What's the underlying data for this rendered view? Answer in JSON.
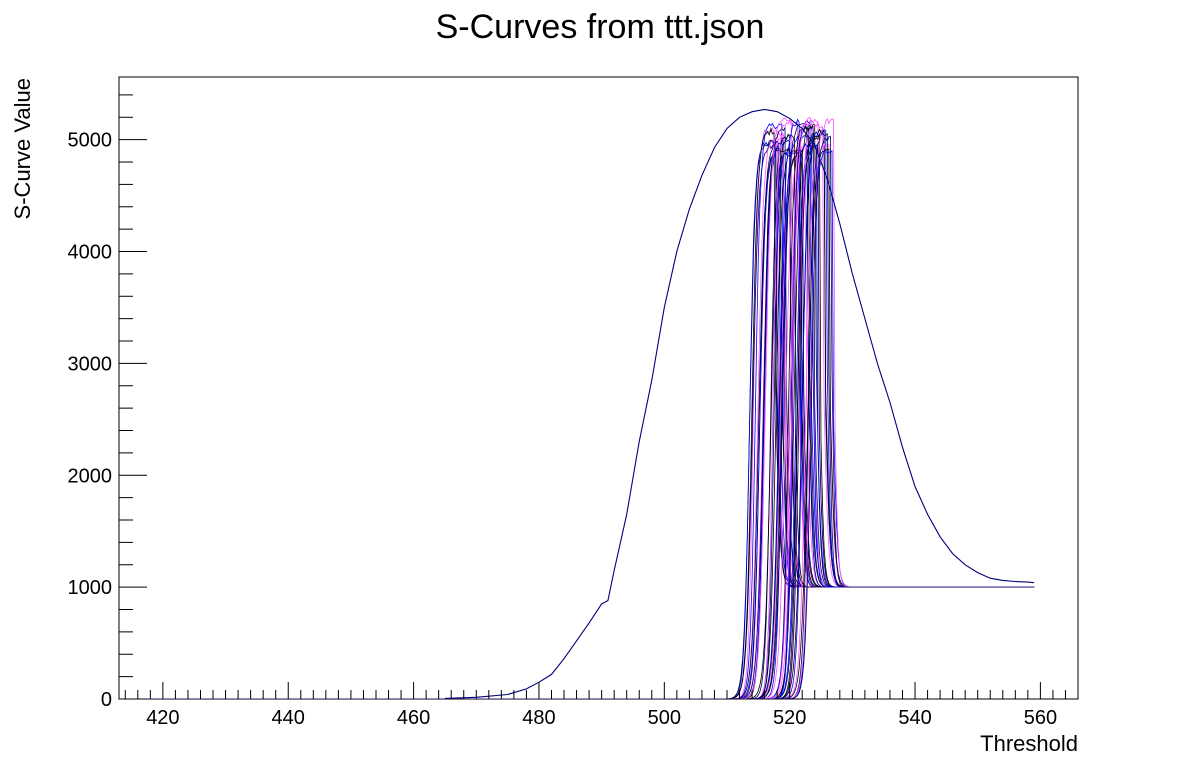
{
  "chart_data": {
    "type": "line",
    "title": "S-Curves from ttt.json",
    "xlabel": "Threshold",
    "ylabel": "S-Curve Value",
    "xlim": [
      413,
      566
    ],
    "ylim": [
      0,
      5560
    ],
    "x_ticks": [
      420,
      440,
      460,
      480,
      500,
      520,
      540,
      560
    ],
    "y_ticks": [
      0,
      1000,
      2000,
      3000,
      4000,
      5000
    ],
    "legend": "none",
    "grid": false,
    "colors": {
      "envelope": "#00007a",
      "dark": "#000000",
      "blue": "#0000ff",
      "pink": "#ff55ff",
      "navy": "#000066"
    },
    "envelope": {
      "color": "#00007a",
      "x": [
        465,
        470,
        475,
        478,
        480,
        482,
        484,
        486,
        488,
        490,
        491,
        492,
        494,
        496,
        498,
        500,
        502,
        504,
        506,
        508,
        510,
        512,
        514,
        516,
        518,
        520,
        522,
        524,
        526,
        528,
        530,
        532,
        534,
        536,
        538,
        540,
        542,
        544,
        546,
        548,
        550,
        552,
        554,
        556,
        558,
        559
      ],
      "y": [
        5,
        15,
        40,
        90,
        150,
        220,
        360,
        520,
        680,
        850,
        880,
        1150,
        1650,
        2300,
        2850,
        3500,
        4000,
        4380,
        4680,
        4930,
        5100,
        5200,
        5250,
        5270,
        5250,
        5190,
        5100,
        4950,
        4650,
        4250,
        3800,
        3400,
        3000,
        2650,
        2250,
        1900,
        1650,
        1450,
        1300,
        1200,
        1130,
        1080,
        1060,
        1050,
        1045,
        1040
      ]
    },
    "pixel_curves": {
      "count": 48,
      "x_start": 416,
      "x_end": 559,
      "baseline_low": 0,
      "peak_range": [
        4880,
        5190
      ],
      "plateau_high": 1000,
      "rise_center_range": [
        513.5,
        523.5
      ],
      "palette_cycle": [
        "#000000",
        "#0000ff",
        "#ff55ff",
        "#000066"
      ]
    }
  }
}
